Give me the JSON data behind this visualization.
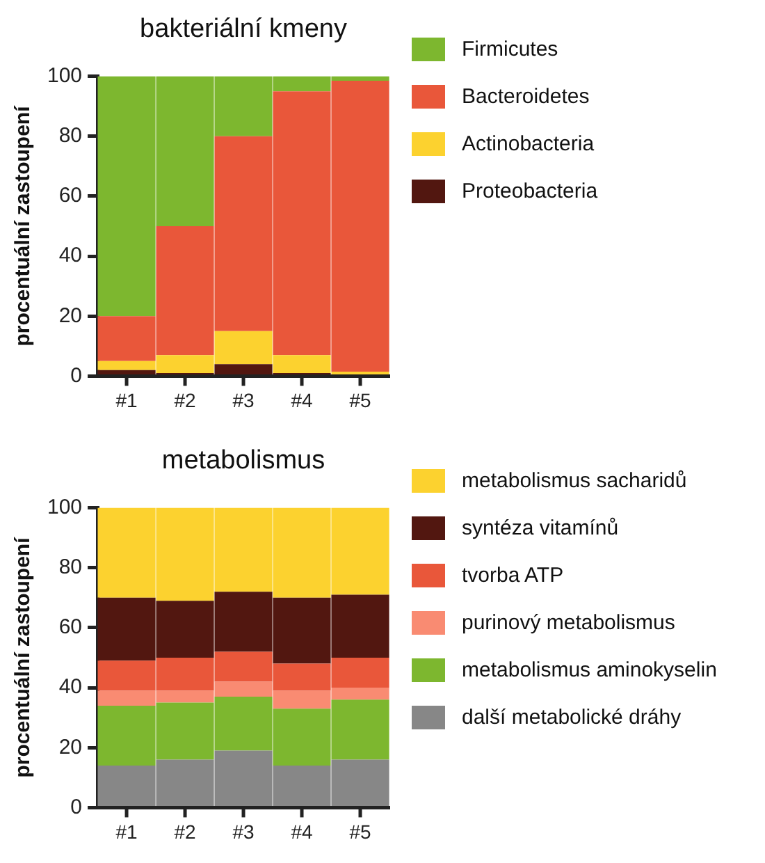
{
  "chart_data": [
    {
      "type": "bar",
      "title": "bakteriální kmeny",
      "ylabel": "procentuální zastoupení",
      "categories": [
        "#1",
        "#2",
        "#3",
        "#4",
        "#5"
      ],
      "stacked": true,
      "ylim": [
        0,
        100
      ],
      "yticks": [
        0,
        20,
        40,
        60,
        80,
        100
      ],
      "grid": false,
      "legend": "right",
      "series": [
        {
          "name": "Proteobacteria",
          "color": "#521710",
          "values": [
            2,
            1,
            4,
            1,
            null
          ]
        },
        {
          "name": "Actinobacteria",
          "color": "#fcd22f",
          "values": [
            3,
            6,
            11,
            6,
            1.5
          ]
        },
        {
          "name": "Bacteroidetes",
          "color": "#e9573a",
          "values": [
            15,
            43,
            65,
            88,
            97
          ]
        },
        {
          "name": "Firmicutes",
          "color": "#7db72f",
          "values": [
            80,
            50,
            20,
            5,
            1.5
          ]
        }
      ]
    },
    {
      "type": "bar",
      "title": "metabolismus",
      "ylabel": "procentuální zastoupení",
      "categories": [
        "#1",
        "#2",
        "#3",
        "#4",
        "#5"
      ],
      "stacked": true,
      "ylim": [
        0,
        100
      ],
      "yticks": [
        0,
        20,
        40,
        60,
        80,
        100
      ],
      "grid": false,
      "legend": "right",
      "series": [
        {
          "name": "další metabolické dráhy",
          "color": "#878787",
          "values": [
            14,
            16,
            19,
            14,
            16
          ]
        },
        {
          "name": "metabolismus aminokyselin",
          "color": "#7db72f",
          "values": [
            20,
            19,
            18,
            19,
            20
          ]
        },
        {
          "name": "purinový metabolismus",
          "color": "#f98b72",
          "values": [
            5,
            4,
            5,
            6,
            4
          ]
        },
        {
          "name": "tvorba ATP",
          "color": "#e9573a",
          "values": [
            10,
            11,
            10,
            9,
            10
          ]
        },
        {
          "name": "syntéza vitamínů",
          "color": "#521710",
          "values": [
            21,
            19,
            20,
            22,
            21
          ]
        },
        {
          "name": "metabolismus sacharidů",
          "color": "#fcd22f",
          "values": [
            30,
            31,
            28,
            30,
            29
          ]
        }
      ]
    }
  ]
}
